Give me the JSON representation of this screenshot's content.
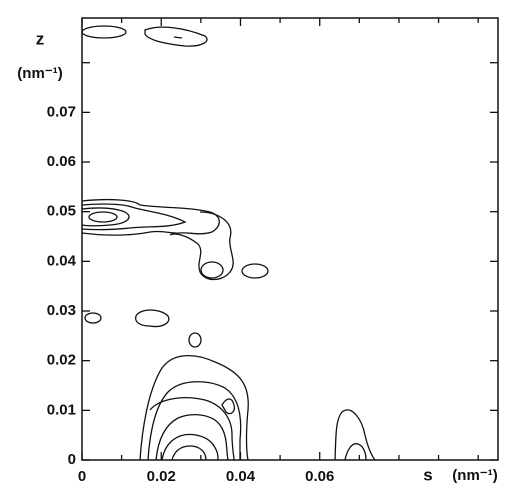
{
  "chart_data": {
    "type": "contour",
    "x_label": "s",
    "x_unit": "(nm⁻¹)",
    "y_label": "z",
    "y_unit": "(nm⁻¹)",
    "xlim": [
      0,
      0.105
    ],
    "xticks": [
      0,
      0.02,
      0.04,
      0.06
    ],
    "xminor": [
      0.01,
      0.03,
      0.05,
      0.07,
      0.08,
      0.09,
      0.1
    ],
    "ylim": [
      0,
      0.089
    ],
    "yticks": [
      0,
      0.01,
      0.02,
      0.03,
      0.04,
      0.05,
      0.06,
      0.07
    ],
    "yminor": [
      0.08
    ],
    "color": "#111111"
  }
}
